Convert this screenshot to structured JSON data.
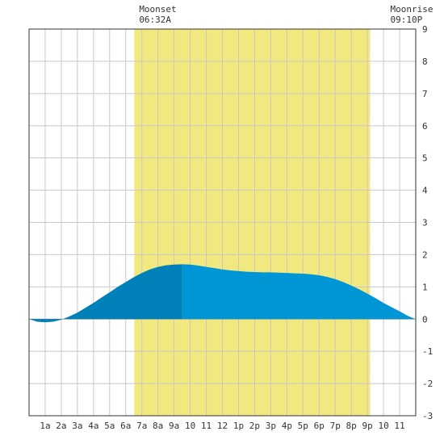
{
  "chart_data": {
    "type": "area",
    "title": "",
    "xlabel": "",
    "ylabel": "",
    "x_tick_labels": [
      "1a",
      "2a",
      "3a",
      "4a",
      "5a",
      "6a",
      "7a",
      "8a",
      "9a",
      "10",
      "11",
      "12",
      "1p",
      "2p",
      "3p",
      "4p",
      "5p",
      "6p",
      "7p",
      "8p",
      "9p",
      "10",
      "11"
    ],
    "x_range_hours": [
      0,
      24
    ],
    "y_ticks": [
      9,
      8,
      7,
      6,
      5,
      4,
      3,
      2,
      1,
      0,
      -1,
      -2,
      -3
    ],
    "ylim": [
      -3,
      9
    ],
    "grid": true,
    "moonset": {
      "label": "Moonset",
      "time": "06:32A",
      "hour": 6.53
    },
    "moonrise": {
      "label": "Moonrise",
      "time": "09:10P",
      "hour": 21.17
    },
    "series": [
      {
        "color": "#0096d6",
        "dark_color": "#0080b8",
        "dark_span_hours": [
          0,
          9.5
        ],
        "points": [
          [
            0,
            0.0
          ],
          [
            0.5,
            -0.08
          ],
          [
            1,
            -0.1
          ],
          [
            1.5,
            -0.08
          ],
          [
            2,
            -0.02
          ],
          [
            2.5,
            0.08
          ],
          [
            3,
            0.2
          ],
          [
            3.5,
            0.35
          ],
          [
            4,
            0.5
          ],
          [
            4.5,
            0.67
          ],
          [
            5,
            0.83
          ],
          [
            5.5,
            1.0
          ],
          [
            6,
            1.15
          ],
          [
            6.5,
            1.3
          ],
          [
            7,
            1.43
          ],
          [
            7.5,
            1.54
          ],
          [
            8,
            1.62
          ],
          [
            8.5,
            1.67
          ],
          [
            9,
            1.69
          ],
          [
            9.5,
            1.7
          ],
          [
            10,
            1.69
          ],
          [
            10.5,
            1.66
          ],
          [
            11,
            1.62
          ],
          [
            11.5,
            1.58
          ],
          [
            12,
            1.54
          ],
          [
            12.5,
            1.51
          ],
          [
            13,
            1.49
          ],
          [
            13.5,
            1.47
          ],
          [
            14,
            1.46
          ],
          [
            14.5,
            1.45
          ],
          [
            15,
            1.45
          ],
          [
            15.5,
            1.44
          ],
          [
            16,
            1.43
          ],
          [
            16.5,
            1.42
          ],
          [
            17,
            1.41
          ],
          [
            17.5,
            1.39
          ],
          [
            18,
            1.36
          ],
          [
            18.5,
            1.31
          ],
          [
            19,
            1.24
          ],
          [
            19.5,
            1.15
          ],
          [
            20,
            1.04
          ],
          [
            20.5,
            0.92
          ],
          [
            21,
            0.79
          ],
          [
            21.5,
            0.65
          ],
          [
            22,
            0.5
          ],
          [
            22.5,
            0.37
          ],
          [
            23,
            0.24
          ],
          [
            23.5,
            0.1
          ],
          [
            24,
            0.0
          ]
        ]
      }
    ],
    "colors": {
      "background": "#ffffff",
      "daylight": "#f2e880",
      "grid": "#c8c8c8",
      "zero_line": "#333333"
    }
  }
}
